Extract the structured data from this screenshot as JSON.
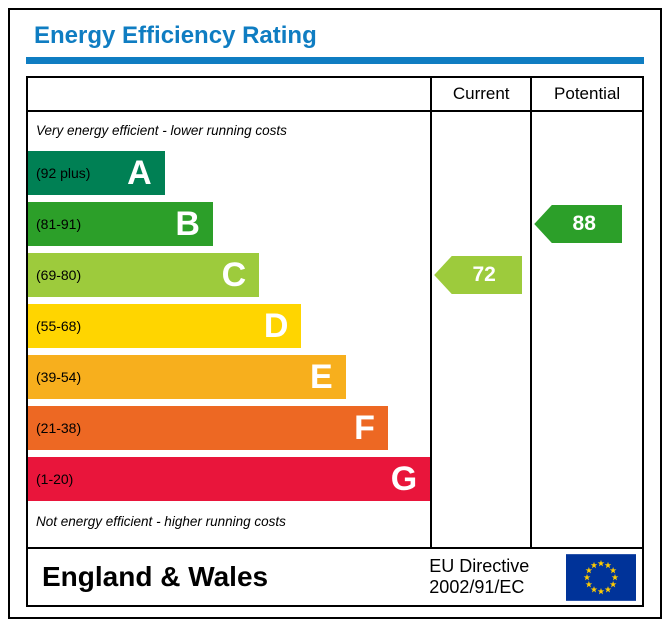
{
  "title": "Energy Efficiency Rating",
  "header": {
    "current": "Current",
    "potential": "Potential"
  },
  "captions": {
    "top": "Very energy efficient - lower running costs",
    "bottom": "Not energy efficient - higher running costs"
  },
  "bands": [
    {
      "range": "(92 plus)",
      "letter": "A",
      "color": "#008054",
      "width_pct": 34
    },
    {
      "range": "(81-91)",
      "letter": "B",
      "color": "#2c9f29",
      "width_pct": 46
    },
    {
      "range": "(69-80)",
      "letter": "C",
      "color": "#9dcb3c",
      "width_pct": 57.5
    },
    {
      "range": "(55-68)",
      "letter": "D",
      "color": "#ffd500",
      "width_pct": 68
    },
    {
      "range": "(39-54)",
      "letter": "E",
      "color": "#f7af1d",
      "width_pct": 79
    },
    {
      "range": "(21-38)",
      "letter": "F",
      "color": "#ed6823",
      "width_pct": 89.5
    },
    {
      "range": "(1-20)",
      "letter": "G",
      "color": "#e9153b",
      "width_pct": 100
    }
  ],
  "pointers": {
    "current": {
      "value": "72",
      "band": "C",
      "color": "#9dcb3c"
    },
    "potential": {
      "value": "88",
      "band": "B",
      "color": "#2c9f29"
    }
  },
  "footer": {
    "region": "England & Wales",
    "directive_line1": "EU Directive",
    "directive_line2": "2002/91/EC"
  },
  "colors": {
    "accent": "#0f7dc2",
    "flag_blue": "#003399",
    "flag_yellow": "#ffcc00"
  },
  "chart_data": {
    "type": "bar",
    "title": "Energy Efficiency Rating",
    "categories": [
      "A",
      "B",
      "C",
      "D",
      "E",
      "F",
      "G"
    ],
    "band_ranges": [
      "92 plus",
      "81-91",
      "69-80",
      "55-68",
      "39-54",
      "21-38",
      "1-20"
    ],
    "band_colors": [
      "#008054",
      "#2c9f29",
      "#9dcb3c",
      "#ffd500",
      "#f7af1d",
      "#ed6823",
      "#e9153b"
    ],
    "bar_lengths_pct": [
      34,
      46,
      57.5,
      68,
      79,
      89.5,
      100
    ],
    "series": [
      {
        "name": "Current",
        "value": 72,
        "band": "C"
      },
      {
        "name": "Potential",
        "value": 88,
        "band": "B"
      }
    ],
    "annotations": [
      "Very energy efficient - lower running costs",
      "Not energy efficient - higher running costs",
      "England & Wales",
      "EU Directive 2002/91/EC"
    ]
  }
}
